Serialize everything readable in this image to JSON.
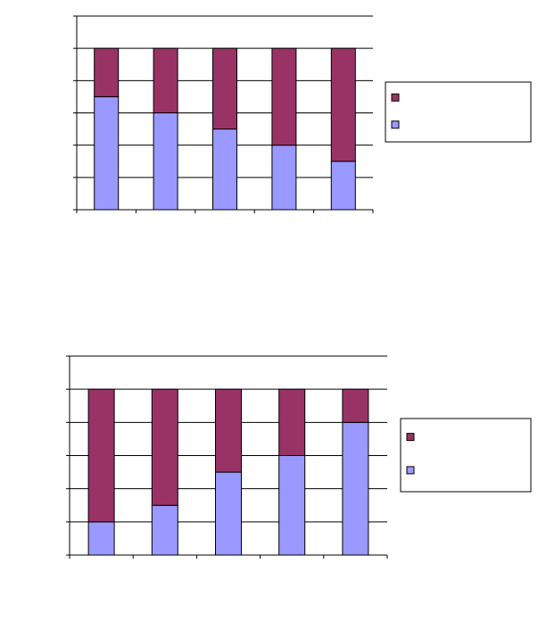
{
  "chart_data": [
    {
      "type": "bar",
      "stacked": true,
      "categories": [
        null,
        null,
        null,
        null,
        null
      ],
      "series": [
        {
          "color": "#9999ff",
          "values": [
            70,
            60,
            50,
            40,
            30
          ]
        },
        {
          "color": "#993366",
          "values": [
            30,
            40,
            50,
            60,
            70
          ]
        }
      ],
      "ylim": [
        0,
        120
      ],
      "yticks": [
        0,
        20,
        40,
        60,
        80,
        100,
        120
      ],
      "grid": true,
      "legend": "right"
    },
    {
      "type": "bar",
      "stacked": true,
      "categories": [
        null,
        null,
        null,
        null,
        null
      ],
      "series": [
        {
          "color": "#9999ff",
          "values": [
            20,
            30,
            50,
            60,
            80
          ]
        },
        {
          "color": "#993366",
          "values": [
            80,
            70,
            50,
            40,
            20
          ]
        }
      ],
      "ylim": [
        0,
        120
      ],
      "yticks": [
        0,
        20,
        40,
        60,
        80,
        100,
        120
      ],
      "grid": true,
      "legend": "right"
    }
  ]
}
